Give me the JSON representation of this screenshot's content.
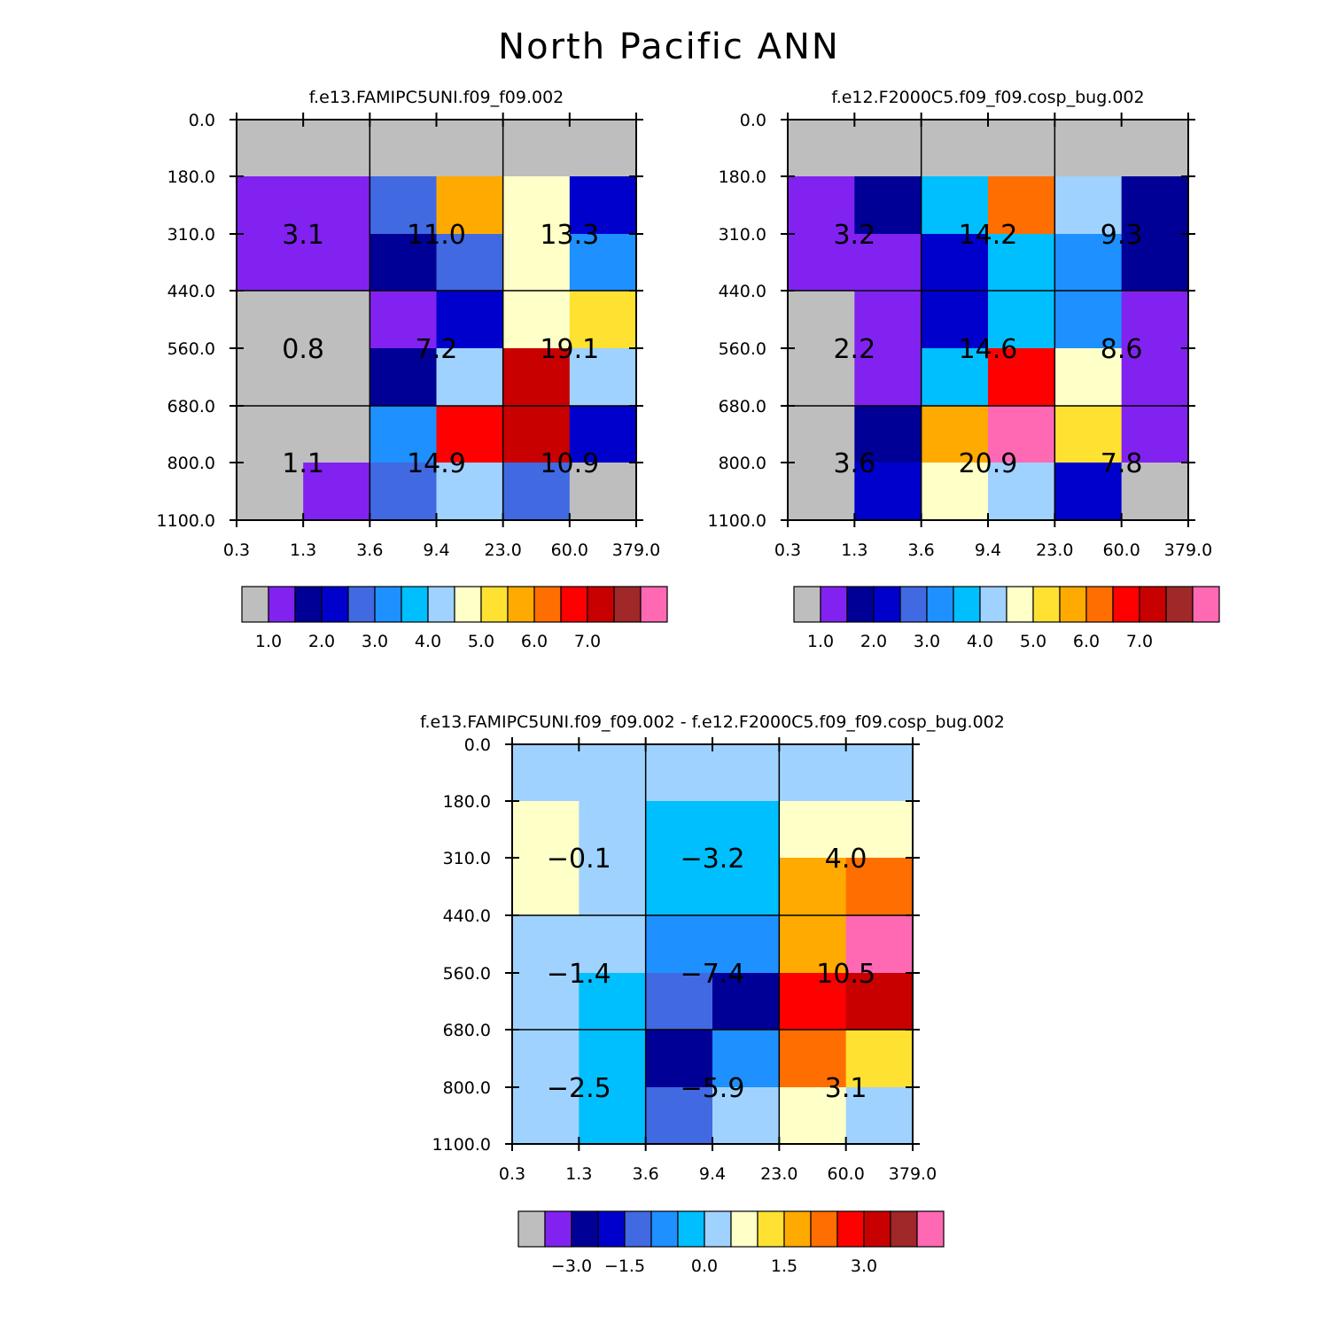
{
  "title": "North Pacific ANN",
  "colormap_gray": "#bebebe",
  "colors": [
    "#8222f0",
    "#000096",
    "#0000cd",
    "#4169e1",
    "#1e90ff",
    "#00bfff",
    "#a0d2ff",
    "#ffffc8",
    "#ffe132",
    "#ffaa00",
    "#ff6e00",
    "#ff0000",
    "#c80000",
    "#a02828",
    "#ff69b4"
  ],
  "chart_data": [
    {
      "type": "heatmap",
      "title": "f.e13.FAMIPC5UNI.f09_f09.002",
      "xlabel": "",
      "ylabel": "",
      "x_ticks": [
        "0.3",
        "1.3",
        "3.6",
        "9.4",
        "23.0",
        "60.0",
        "379.0"
      ],
      "y_ticks": [
        "0.0",
        "180.0",
        "310.0",
        "440.0",
        "560.0",
        "680.0",
        "800.0",
        "1100.0"
      ],
      "cells": [
        [
          -1,
          -1,
          -1,
          -1,
          -1,
          -1
        ],
        [
          0,
          0,
          3,
          9,
          7,
          2
        ],
        [
          0,
          0,
          1,
          3,
          7,
          4
        ],
        [
          -1,
          -1,
          0,
          2,
          7,
          8
        ],
        [
          -1,
          -1,
          1,
          6,
          12,
          6
        ],
        [
          -1,
          -1,
          4,
          11,
          12,
          2
        ],
        [
          -1,
          0,
          3,
          6,
          3,
          -1
        ]
      ],
      "labels": [
        {
          "text": "3.1",
          "col": 0,
          "row": 1
        },
        {
          "text": "11.0",
          "col": 1,
          "row": 1
        },
        {
          "text": "13.3",
          "col": 2,
          "row": 1
        },
        {
          "text": "0.8",
          "col": 0,
          "row": 2
        },
        {
          "text": "7.2",
          "col": 1,
          "row": 2
        },
        {
          "text": "19.1",
          "col": 2,
          "row": 2
        },
        {
          "text": "1.1",
          "col": 0,
          "row": 3
        },
        {
          "text": "14.9",
          "col": 1,
          "row": 3
        },
        {
          "text": "10.9",
          "col": 2,
          "row": 3
        }
      ],
      "colorbar_labels": [
        "1.0",
        "2.0",
        "3.0",
        "4.0",
        "5.0",
        "6.0",
        "7.0"
      ],
      "colorbar_label_boxes": [
        1,
        3,
        5,
        7,
        9,
        11,
        13
      ]
    },
    {
      "type": "heatmap",
      "title": "f.e12.F2000C5.f09_f09.cosp_bug.002",
      "xlabel": "",
      "ylabel": "",
      "x_ticks": [
        "0.3",
        "1.3",
        "3.6",
        "9.4",
        "23.0",
        "60.0",
        "379.0"
      ],
      "y_ticks": [
        "0.0",
        "180.0",
        "310.0",
        "440.0",
        "560.0",
        "680.0",
        "800.0",
        "1100.0"
      ],
      "cells": [
        [
          -1,
          -1,
          -1,
          -1,
          -1,
          -1
        ],
        [
          0,
          1,
          5,
          10,
          6,
          1
        ],
        [
          0,
          0,
          2,
          5,
          4,
          1
        ],
        [
          -1,
          0,
          2,
          5,
          4,
          0
        ],
        [
          -1,
          0,
          5,
          11,
          7,
          0
        ],
        [
          -1,
          1,
          9,
          14,
          8,
          0
        ],
        [
          -1,
          2,
          7,
          6,
          2,
          -1
        ]
      ],
      "labels": [
        {
          "text": "3.2",
          "col": 0,
          "row": 1
        },
        {
          "text": "14.2",
          "col": 1,
          "row": 1
        },
        {
          "text": "9.3",
          "col": 2,
          "row": 1
        },
        {
          "text": "2.2",
          "col": 0,
          "row": 2
        },
        {
          "text": "14.6",
          "col": 1,
          "row": 2
        },
        {
          "text": "8.6",
          "col": 2,
          "row": 2
        },
        {
          "text": "3.6",
          "col": 0,
          "row": 3
        },
        {
          "text": "20.9",
          "col": 1,
          "row": 3
        },
        {
          "text": "7.8",
          "col": 2,
          "row": 3
        }
      ],
      "colorbar_labels": [
        "1.0",
        "2.0",
        "3.0",
        "4.0",
        "5.0",
        "6.0",
        "7.0"
      ],
      "colorbar_label_boxes": [
        1,
        3,
        5,
        7,
        9,
        11,
        13
      ]
    },
    {
      "type": "heatmap",
      "title": "f.e13.FAMIPC5UNI.f09_f09.002 - f.e12.F2000C5.f09_f09.cosp_bug.002",
      "xlabel": "",
      "ylabel": "",
      "x_ticks": [
        "0.3",
        "1.3",
        "3.6",
        "9.4",
        "23.0",
        "60.0",
        "379.0"
      ],
      "y_ticks": [
        "0.0",
        "180.0",
        "310.0",
        "440.0",
        "560.0",
        "680.0",
        "800.0",
        "1100.0"
      ],
      "cells": [
        [
          6,
          6,
          6,
          6,
          6,
          6
        ],
        [
          7,
          6,
          5,
          5,
          7,
          7
        ],
        [
          7,
          6,
          5,
          5,
          9,
          10
        ],
        [
          6,
          6,
          4,
          4,
          9,
          14
        ],
        [
          6,
          5,
          3,
          1,
          11,
          12
        ],
        [
          6,
          5,
          1,
          4,
          10,
          8
        ],
        [
          6,
          5,
          3,
          6,
          7,
          6
        ]
      ],
      "labels": [
        {
          "text": "-0.1",
          "col": 0,
          "row": 1
        },
        {
          "text": "-3.2",
          "col": 1,
          "row": 1
        },
        {
          "text": "4.0",
          "col": 2,
          "row": 1
        },
        {
          "text": "-1.4",
          "col": 0,
          "row": 2
        },
        {
          "text": "-7.4",
          "col": 1,
          "row": 2
        },
        {
          "text": "10.5",
          "col": 2,
          "row": 2
        },
        {
          "text": "-2.5",
          "col": 0,
          "row": 3
        },
        {
          "text": "-5.9",
          "col": 1,
          "row": 3
        },
        {
          "text": "3.1",
          "col": 2,
          "row": 3
        }
      ],
      "colorbar_labels": [
        "-3.0",
        "-1.5",
        "0.0",
        "1.5",
        "3.0"
      ],
      "colorbar_label_boxes": [
        2,
        4,
        7,
        10,
        13
      ]
    }
  ]
}
